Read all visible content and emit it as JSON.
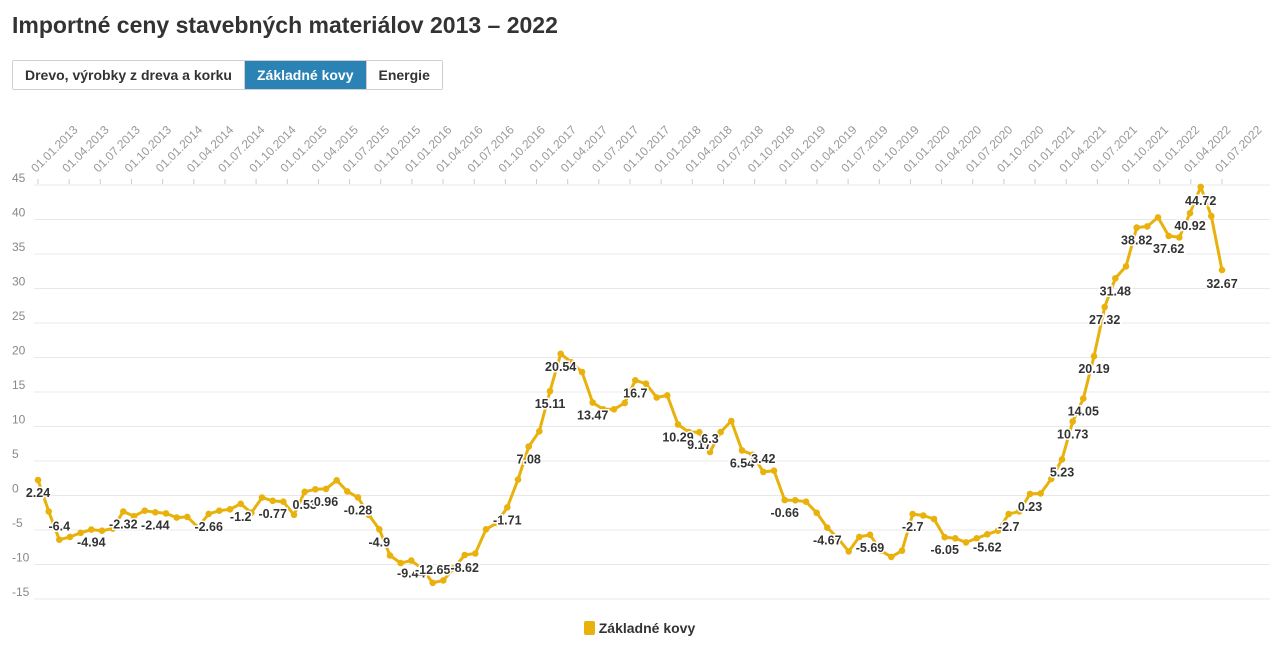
{
  "title": "Importné ceny stavebných materiálov 2013 – 2022",
  "tabs": [
    {
      "label": "Drevo, výrobky z dreva a korku",
      "active": false
    },
    {
      "label": "Základné kovy",
      "active": true
    },
    {
      "label": "Energie",
      "active": false
    }
  ],
  "colors": {
    "series": "#e8b10c",
    "tab_active": "#2a83b4",
    "grid": "#e8e8e8"
  },
  "chart_data": {
    "type": "line",
    "title": "Importné ceny stavebných materiálov 2013 – 2022",
    "ylim": [
      -15,
      45
    ],
    "yticks": [
      -15,
      -10,
      -5,
      0,
      5,
      10,
      15,
      20,
      25,
      30,
      35,
      40,
      45
    ],
    "x_tick_labels": [
      "01.01.2013",
      "01.04.2013",
      "01.07.2013",
      "01.10.2013",
      "01.01.2014",
      "01.04.2014",
      "01.07.2014",
      "01.10.2014",
      "01.01.2015",
      "01.04.2015",
      "01.07.2015",
      "01.10.2015",
      "01.01.2016",
      "01.04.2016",
      "01.07.2016",
      "01.10.2016",
      "01.01.2017",
      "01.04.2017",
      "01.07.2017",
      "01.10.2017",
      "01.01.2018",
      "01.04.2018",
      "01.07.2018",
      "01.10.2018",
      "01.01.2019",
      "01.04.2019",
      "01.07.2019",
      "01.10.2019",
      "01.01.2020",
      "01.04.2020",
      "01.07.2020",
      "01.10.2020",
      "01.01.2021",
      "01.04.2021",
      "01.07.2021",
      "01.10.2021",
      "01.01.2022",
      "01.04.2022",
      "01.07.2022"
    ],
    "legend": [
      {
        "name": "Základné kovy"
      }
    ],
    "series": [
      {
        "name": "Základné kovy",
        "values": [
          2.24,
          -2.3,
          -6.4,
          -6.0,
          -5.4,
          -4.94,
          -5.1,
          -4.8,
          -2.32,
          -3.0,
          -2.2,
          -2.44,
          -2.6,
          -3.2,
          -3.1,
          -4.6,
          -2.66,
          -2.2,
          -2.0,
          -1.2,
          -2.5,
          -0.3,
          -0.77,
          -0.9,
          -2.8,
          0.53,
          0.9,
          0.96,
          2.2,
          0.6,
          -0.28,
          -2.8,
          -4.9,
          -8.7,
          -9.8,
          -9.44,
          -10.6,
          -12.65,
          -12.3,
          -10.5,
          -8.62,
          -8.4,
          -4.9,
          -4.0,
          -1.71,
          2.3,
          7.08,
          9.3,
          15.11,
          20.54,
          19.3,
          17.9,
          13.47,
          12.5,
          12.5,
          13.4,
          16.7,
          16.2,
          14.2,
          14.5,
          10.29,
          9.2,
          9.17,
          6.3,
          9.2,
          10.8,
          6.54,
          5.9,
          3.42,
          3.6,
          -0.66,
          -0.7,
          -0.9,
          -2.5,
          -4.67,
          -6.2,
          -8.1,
          -6.0,
          -5.69,
          -8.0,
          -8.9,
          -8.0,
          -2.7,
          -2.9,
          -3.4,
          -6.05,
          -6.2,
          -6.8,
          -6.2,
          -5.62,
          -5.1,
          -2.7,
          -2.3,
          0.23,
          0.3,
          2.4,
          5.23,
          10.73,
          14.05,
          20.19,
          27.32,
          31.48,
          33.2,
          38.82,
          39.0,
          40.3,
          37.62,
          37.4,
          40.92,
          44.72,
          40.5,
          32.67
        ],
        "data_labels": [
          {
            "index": 0,
            "text": "2.24"
          },
          {
            "index": 2,
            "text": "-6.4"
          },
          {
            "index": 5,
            "text": "-4.94"
          },
          {
            "index": 8,
            "text": "-2.32"
          },
          {
            "index": 11,
            "text": "-2.44"
          },
          {
            "index": 16,
            "text": "-2.66"
          },
          {
            "index": 19,
            "text": "-1.2"
          },
          {
            "index": 22,
            "text": "-0.77"
          },
          {
            "index": 25,
            "text": "0.53"
          },
          {
            "index": 27,
            "text": "0.96"
          },
          {
            "index": 30,
            "text": "-0.28"
          },
          {
            "index": 32,
            "text": "-4.9"
          },
          {
            "index": 35,
            "text": "-9.44"
          },
          {
            "index": 37,
            "text": "-12.65"
          },
          {
            "index": 40,
            "text": "-8.62"
          },
          {
            "index": 44,
            "text": "-1.71"
          },
          {
            "index": 46,
            "text": "7.08"
          },
          {
            "index": 48,
            "text": "15.11"
          },
          {
            "index": 49,
            "text": "20.54"
          },
          {
            "index": 52,
            "text": "13.47"
          },
          {
            "index": 56,
            "text": "16.7"
          },
          {
            "index": 60,
            "text": "10.29"
          },
          {
            "index": 62,
            "text": "9.17"
          },
          {
            "index": 63,
            "text": "6.3"
          },
          {
            "index": 66,
            "text": "6.54"
          },
          {
            "index": 68,
            "text": "3.42"
          },
          {
            "index": 70,
            "text": "-0.66"
          },
          {
            "index": 74,
            "text": "-4.67"
          },
          {
            "index": 78,
            "text": "-5.69"
          },
          {
            "index": 82,
            "text": "-2.7"
          },
          {
            "index": 85,
            "text": "-6.05"
          },
          {
            "index": 89,
            "text": "-5.62"
          },
          {
            "index": 91,
            "text": "-2.7"
          },
          {
            "index": 93,
            "text": "0.23"
          },
          {
            "index": 96,
            "text": "5.23"
          },
          {
            "index": 97,
            "text": "10.73"
          },
          {
            "index": 98,
            "text": "14.05"
          },
          {
            "index": 99,
            "text": "20.19"
          },
          {
            "index": 100,
            "text": "27.32"
          },
          {
            "index": 101,
            "text": "31.48"
          },
          {
            "index": 103,
            "text": "38.82"
          },
          {
            "index": 106,
            "text": "37.62"
          },
          {
            "index": 108,
            "text": "40.92"
          },
          {
            "index": 109,
            "text": "44.72"
          },
          {
            "index": 111,
            "text": "32.67"
          }
        ]
      }
    ]
  }
}
